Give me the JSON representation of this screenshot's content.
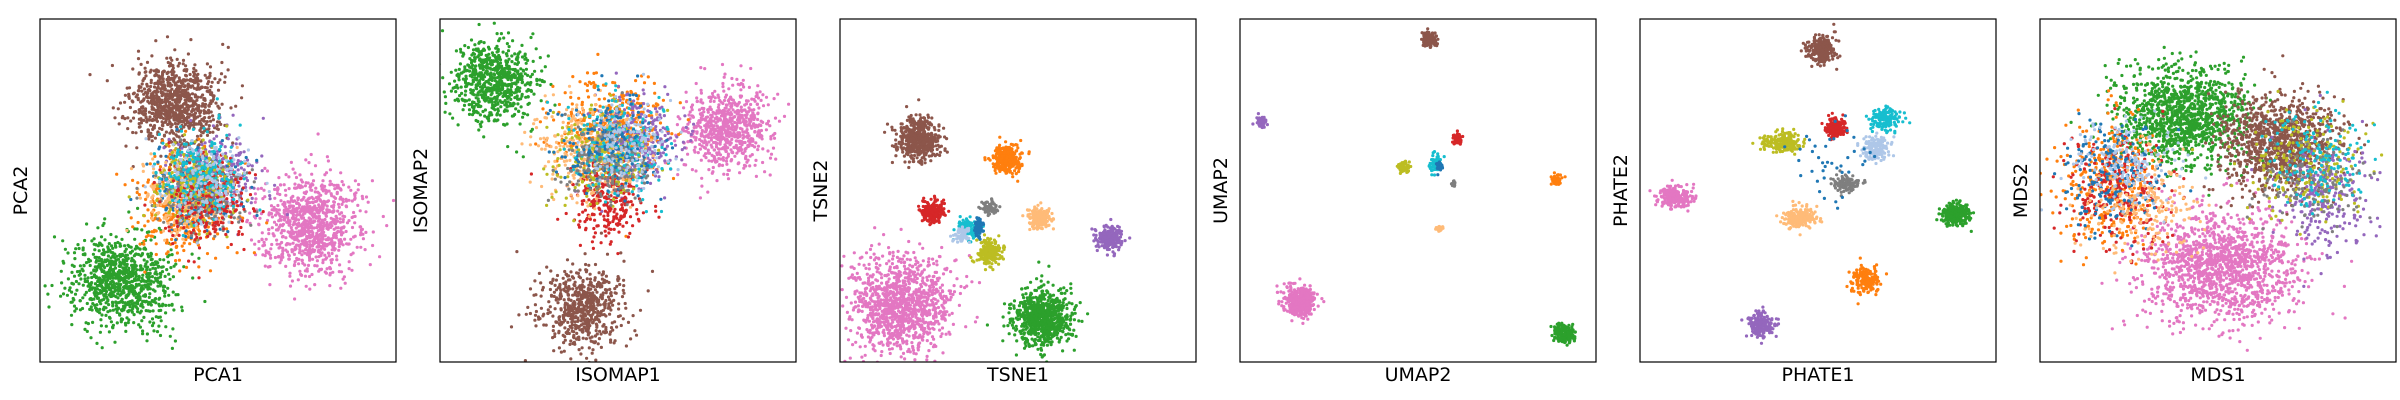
{
  "chart_data": [
    {
      "type": "scatter",
      "xlabel": "PCA1",
      "ylabel": "PCA2",
      "grid": false,
      "ticks": false,
      "xlim": [
        0,
        100
      ],
      "ylim": [
        0,
        100
      ],
      "clusters": [
        {
          "color": "#8c564b",
          "center": [
            38,
            75
          ],
          "spread": [
            6,
            6
          ],
          "count": 900
        },
        {
          "color": "#2ca02c",
          "center": [
            23,
            24
          ],
          "spread": [
            7,
            7
          ],
          "count": 900
        },
        {
          "color": "#e377c2",
          "center": [
            76,
            40
          ],
          "spread": [
            7,
            7
          ],
          "count": 900
        },
        {
          "color": "#ff7f0e",
          "center": [
            40,
            45
          ],
          "spread": [
            6,
            7
          ],
          "count": 350
        },
        {
          "color": "#9467bd",
          "center": [
            49,
            54
          ],
          "spread": [
            6,
            6
          ],
          "count": 300
        },
        {
          "color": "#1f77b4",
          "center": [
            44,
            50
          ],
          "spread": [
            6,
            6
          ],
          "count": 250
        },
        {
          "color": "#ffbb78",
          "center": [
            41,
            48
          ],
          "spread": [
            6,
            6
          ],
          "count": 250
        },
        {
          "color": "#7f7f7f",
          "center": [
            46,
            50
          ],
          "spread": [
            6,
            6
          ],
          "count": 200
        },
        {
          "color": "#bcbd22",
          "center": [
            43,
            52
          ],
          "spread": [
            6,
            6
          ],
          "count": 200
        },
        {
          "color": "#d62728",
          "center": [
            47,
            46
          ],
          "spread": [
            6,
            6
          ],
          "count": 200
        },
        {
          "color": "#17becf",
          "center": [
            45,
            55
          ],
          "spread": [
            6,
            6
          ],
          "count": 200
        },
        {
          "color": "#aec7e8",
          "center": [
            46,
            52
          ],
          "spread": [
            6,
            6
          ],
          "count": 150
        }
      ]
    },
    {
      "type": "scatter",
      "xlabel": "ISOMAP1",
      "ylabel": "ISOMAP2",
      "grid": false,
      "ticks": false,
      "xlim": [
        0,
        100
      ],
      "ylim": [
        0,
        100
      ],
      "clusters": [
        {
          "color": "#2ca02c",
          "center": [
            15,
            82
          ],
          "spread": [
            6,
            6
          ],
          "count": 700
        },
        {
          "color": "#8c564b",
          "center": [
            40,
            16
          ],
          "spread": [
            6,
            6
          ],
          "count": 600
        },
        {
          "color": "#e377c2",
          "center": [
            80,
            68
          ],
          "spread": [
            6,
            6
          ],
          "count": 700
        },
        {
          "color": "#ff7f0e",
          "center": [
            48,
            68
          ],
          "spread": [
            7,
            7
          ],
          "count": 400
        },
        {
          "color": "#9467bd",
          "center": [
            55,
            65
          ],
          "spread": [
            6,
            6
          ],
          "count": 300
        },
        {
          "color": "#d62728",
          "center": [
            47,
            48
          ],
          "spread": [
            5,
            6
          ],
          "count": 300
        },
        {
          "color": "#ffbb78",
          "center": [
            42,
            62
          ],
          "spread": [
            7,
            7
          ],
          "count": 300
        },
        {
          "color": "#bcbd22",
          "center": [
            44,
            60
          ],
          "spread": [
            7,
            7
          ],
          "count": 200
        },
        {
          "color": "#17becf",
          "center": [
            50,
            62
          ],
          "spread": [
            7,
            7
          ],
          "count": 200
        },
        {
          "color": "#1f77b4",
          "center": [
            48,
            63
          ],
          "spread": [
            7,
            7
          ],
          "count": 200
        },
        {
          "color": "#7f7f7f",
          "center": [
            46,
            58
          ],
          "spread": [
            6,
            6
          ],
          "count": 150
        },
        {
          "color": "#aec7e8",
          "center": [
            52,
            64
          ],
          "spread": [
            6,
            6
          ],
          "count": 150
        }
      ]
    },
    {
      "type": "scatter",
      "xlabel": "TSNE1",
      "ylabel": "TSNE2",
      "grid": false,
      "ticks": false,
      "xlim": [
        0,
        100
      ],
      "ylim": [
        0,
        100
      ],
      "clusters": [
        {
          "color": "#8c564b",
          "center": [
            22,
            65
          ],
          "spread": [
            3,
            3
          ],
          "count": 500
        },
        {
          "color": "#e377c2",
          "center": [
            17,
            17
          ],
          "spread": [
            7,
            7
          ],
          "count": 1200
        },
        {
          "color": "#2ca02c",
          "center": [
            57,
            13
          ],
          "spread": [
            4,
            4
          ],
          "count": 800
        },
        {
          "color": "#ff7f0e",
          "center": [
            47,
            59
          ],
          "spread": [
            2,
            2
          ],
          "count": 300
        },
        {
          "color": "#d62728",
          "center": [
            26,
            44
          ],
          "spread": [
            1.6,
            1.6
          ],
          "count": 200
        },
        {
          "color": "#7f7f7f",
          "center": [
            42,
            45
          ],
          "spread": [
            1,
            1
          ],
          "count": 80
        },
        {
          "color": "#ffbb78",
          "center": [
            56,
            42
          ],
          "spread": [
            1.6,
            1.6
          ],
          "count": 200
        },
        {
          "color": "#9467bd",
          "center": [
            76,
            36
          ],
          "spread": [
            1.8,
            1.8
          ],
          "count": 250
        },
        {
          "color": "#bcbd22",
          "center": [
            42,
            32
          ],
          "spread": [
            1.8,
            1.8
          ],
          "count": 200
        },
        {
          "color": "#17becf",
          "center": [
            36,
            39
          ],
          "spread": [
            1.5,
            1.5
          ],
          "count": 120
        },
        {
          "color": "#1f77b4",
          "center": [
            39,
            39
          ],
          "spread": [
            0.6,
            1.4
          ],
          "count": 60
        },
        {
          "color": "#aec7e8",
          "center": [
            34,
            37
          ],
          "spread": [
            1.2,
            1.2
          ],
          "count": 60
        }
      ]
    },
    {
      "type": "scatter",
      "xlabel": "UMAP2",
      "ylabel": "UMAP2",
      "grid": false,
      "ticks": false,
      "xlim": [
        0,
        100
      ],
      "ylim": [
        0,
        100
      ],
      "clusters": [
        {
          "color": "#8c564b",
          "center": [
            53,
            94
          ],
          "spread": [
            1.2,
            1.2
          ],
          "count": 120
        },
        {
          "color": "#9467bd",
          "center": [
            6,
            70
          ],
          "spread": [
            0.9,
            0.9
          ],
          "count": 60
        },
        {
          "color": "#d62728",
          "center": [
            61,
            65
          ],
          "spread": [
            0.8,
            0.8
          ],
          "count": 60
        },
        {
          "color": "#bcbd22",
          "center": [
            46,
            57
          ],
          "spread": [
            0.8,
            0.8
          ],
          "count": 60
        },
        {
          "color": "#17becf",
          "center": [
            55,
            58
          ],
          "spread": [
            0.8,
            1.2
          ],
          "count": 60
        },
        {
          "color": "#1f77b4",
          "center": [
            56,
            57
          ],
          "spread": [
            0.5,
            0.9
          ],
          "count": 30
        },
        {
          "color": "#7f7f7f",
          "center": [
            60,
            52
          ],
          "spread": [
            0.4,
            0.4
          ],
          "count": 15
        },
        {
          "color": "#ff7f0e",
          "center": [
            89,
            53
          ],
          "spread": [
            0.8,
            0.8
          ],
          "count": 60
        },
        {
          "color": "#ffbb78",
          "center": [
            56,
            39
          ],
          "spread": [
            0.5,
            0.5
          ],
          "count": 25
        },
        {
          "color": "#e377c2",
          "center": [
            17,
            18
          ],
          "spread": [
            2.2,
            2.2
          ],
          "count": 400
        },
        {
          "color": "#2ca02c",
          "center": [
            91,
            8
          ],
          "spread": [
            1.6,
            1.2
          ],
          "count": 200
        }
      ]
    },
    {
      "type": "scatter",
      "xlabel": "PHATE1",
      "ylabel": "PHATE2",
      "grid": false,
      "ticks": false,
      "xlim": [
        0,
        100
      ],
      "ylim": [
        0,
        100
      ],
      "clusters": [
        {
          "color": "#8c564b",
          "center": [
            51,
            91
          ],
          "spread": [
            2,
            2
          ],
          "count": 250
        },
        {
          "color": "#e377c2",
          "center": [
            10,
            48
          ],
          "spread": [
            2.5,
            1.5
          ],
          "count": 250
        },
        {
          "color": "#2ca02c",
          "center": [
            89,
            43
          ],
          "spread": [
            2,
            1.5
          ],
          "count": 250
        },
        {
          "color": "#bcbd22",
          "center": [
            40,
            64
          ],
          "spread": [
            2.5,
            1.5
          ],
          "count": 200
        },
        {
          "color": "#d62728",
          "center": [
            55,
            68
          ],
          "spread": [
            1.5,
            1.5
          ],
          "count": 150
        },
        {
          "color": "#17becf",
          "center": [
            69,
            71
          ],
          "spread": [
            2,
            1.5
          ],
          "count": 150
        },
        {
          "color": "#aec7e8",
          "center": [
            66,
            62
          ],
          "spread": [
            2,
            2
          ],
          "count": 150
        },
        {
          "color": "#7f7f7f",
          "center": [
            58,
            52
          ],
          "spread": [
            2,
            1.2
          ],
          "count": 120
        },
        {
          "color": "#ffbb78",
          "center": [
            45,
            42
          ],
          "spread": [
            2.5,
            1.5
          ],
          "count": 200
        },
        {
          "color": "#ff7f0e",
          "center": [
            63,
            24
          ],
          "spread": [
            2,
            2
          ],
          "count": 200
        },
        {
          "color": "#9467bd",
          "center": [
            34,
            11
          ],
          "spread": [
            1.8,
            1.8
          ],
          "count": 200
        },
        {
          "color": "#1f77b4",
          "center": [
            55,
            58
          ],
          "spread": [
            6,
            6
          ],
          "count": 40
        }
      ]
    },
    {
      "type": "scatter",
      "xlabel": "MDS1",
      "ylabel": "MDS2",
      "grid": false,
      "ticks": false,
      "xlim": [
        0,
        100
      ],
      "ylim": [
        0,
        100
      ],
      "clusters": [
        {
          "color": "#e377c2",
          "center": [
            51,
            28
          ],
          "spread": [
            11,
            8
          ],
          "count": 1400
        },
        {
          "color": "#2ca02c",
          "center": [
            40,
            72
          ],
          "spread": [
            9,
            7
          ],
          "count": 1200
        },
        {
          "color": "#8c564b",
          "center": [
            67,
            64
          ],
          "spread": [
            8,
            7
          ],
          "count": 1000
        },
        {
          "color": "#ff7f0e",
          "center": [
            20,
            52
          ],
          "spread": [
            7,
            9
          ],
          "count": 350
        },
        {
          "color": "#9467bd",
          "center": [
            80,
            48
          ],
          "spread": [
            7,
            9
          ],
          "count": 250
        },
        {
          "color": "#d62728",
          "center": [
            22,
            50
          ],
          "spread": [
            7,
            8
          ],
          "count": 250
        },
        {
          "color": "#1f77b4",
          "center": [
            21,
            55
          ],
          "spread": [
            7,
            8
          ],
          "count": 200
        },
        {
          "color": "#bcbd22",
          "center": [
            74,
            58
          ],
          "spread": [
            8,
            8
          ],
          "count": 200
        },
        {
          "color": "#ffbb78",
          "center": [
            30,
            46
          ],
          "spread": [
            8,
            8
          ],
          "count": 200
        },
        {
          "color": "#7f7f7f",
          "center": [
            76,
            52
          ],
          "spread": [
            7,
            7
          ],
          "count": 150
        },
        {
          "color": "#17becf",
          "center": [
            78,
            60
          ],
          "spread": [
            7,
            7
          ],
          "count": 150
        },
        {
          "color": "#aec7e8",
          "center": [
            25,
            58
          ],
          "spread": [
            7,
            7
          ],
          "count": 150
        }
      ]
    }
  ]
}
